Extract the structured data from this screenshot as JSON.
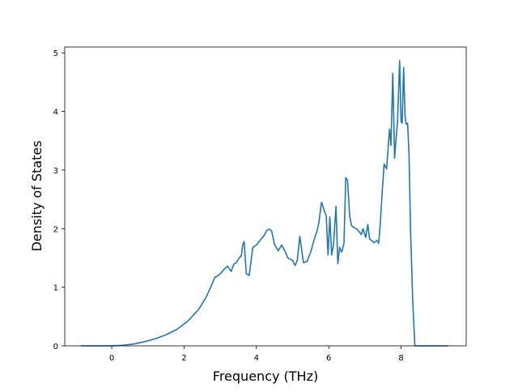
{
  "chart_data": {
    "type": "line",
    "title": "",
    "xlabel": "Frequency (THz)",
    "ylabel": "Density of States",
    "xlim": [
      -1.3,
      9.8
    ],
    "ylim": [
      0,
      5.1
    ],
    "xticks": [
      0,
      2,
      4,
      6,
      8
    ],
    "yticks": [
      0,
      1,
      2,
      3,
      4,
      5
    ],
    "grid": false,
    "legend": "none",
    "series": [
      {
        "color": "#1f77b4",
        "x": [
          -0.85,
          0.0,
          0.3,
          0.6,
          0.9,
          1.2,
          1.5,
          1.8,
          2.1,
          2.4,
          2.6,
          2.75,
          2.85,
          2.92,
          3.0,
          3.1,
          3.2,
          3.3,
          3.38,
          3.45,
          3.52,
          3.58,
          3.62,
          3.66,
          3.72,
          3.8,
          3.9,
          4.0,
          4.1,
          4.2,
          4.3,
          4.36,
          4.42,
          4.5,
          4.6,
          4.7,
          4.8,
          4.87,
          4.93,
          5.0,
          5.07,
          5.13,
          5.2,
          5.3,
          5.4,
          5.5,
          5.6,
          5.68,
          5.72,
          5.8,
          5.88,
          5.93,
          5.98,
          6.03,
          6.08,
          6.13,
          6.2,
          6.25,
          6.3,
          6.36,
          6.42,
          6.47,
          6.52,
          6.58,
          6.63,
          6.7,
          6.8,
          6.9,
          6.95,
          7.02,
          7.08,
          7.13,
          7.18,
          7.25,
          7.33,
          7.38,
          7.42,
          7.48,
          7.53,
          7.6,
          7.68,
          7.72,
          7.77,
          7.82,
          7.86,
          7.9,
          7.96,
          8.0,
          8.03,
          8.07,
          8.11,
          8.14,
          8.18,
          8.22,
          8.26,
          8.32,
          8.38,
          8.45,
          8.5,
          9.3
        ],
        "y": [
          0.0,
          0.0,
          0.01,
          0.03,
          0.07,
          0.12,
          0.19,
          0.28,
          0.42,
          0.62,
          0.82,
          1.02,
          1.17,
          1.19,
          1.23,
          1.3,
          1.36,
          1.27,
          1.4,
          1.42,
          1.5,
          1.53,
          1.72,
          1.78,
          1.23,
          1.2,
          1.68,
          1.72,
          1.8,
          1.87,
          1.98,
          1.99,
          1.96,
          1.73,
          1.62,
          1.72,
          1.6,
          1.5,
          1.48,
          1.46,
          1.37,
          1.46,
          1.87,
          1.42,
          1.44,
          1.6,
          1.82,
          1.97,
          2.08,
          2.45,
          2.3,
          2.22,
          1.55,
          2.2,
          1.55,
          1.72,
          2.38,
          1.4,
          1.68,
          1.6,
          1.75,
          2.87,
          2.82,
          2.2,
          2.05,
          2.02,
          1.98,
          1.9,
          2.0,
          1.85,
          2.07,
          1.82,
          1.8,
          1.76,
          1.8,
          1.75,
          2.05,
          2.65,
          3.1,
          3.02,
          3.7,
          3.42,
          4.65,
          3.2,
          3.52,
          3.82,
          4.87,
          3.82,
          3.8,
          4.75,
          3.92,
          3.78,
          3.8,
          3.25,
          2.0,
          0.8,
          0.0,
          0.0,
          0.0,
          0.0
        ]
      }
    ]
  }
}
